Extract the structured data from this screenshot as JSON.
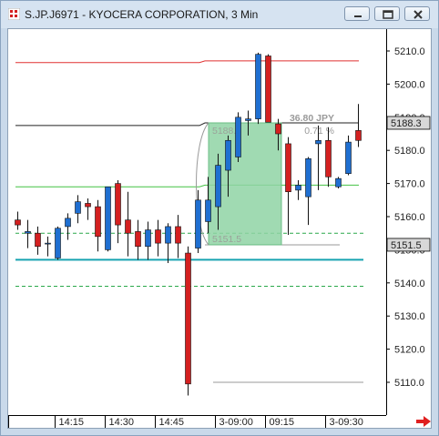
{
  "window": {
    "title": "S.JP.J6971 - KYOCERA CORPORATION, 3 Min",
    "buttons": [
      "minimize",
      "restore",
      "close"
    ]
  },
  "colors": {
    "up": "#1f6fd1",
    "down": "#d42020",
    "red_line": "#e03030",
    "black_line": "#222222",
    "green_line": "#44c244",
    "dashed_green": "#2aa84a",
    "cyan_line": "#17a3b0",
    "gray_line": "#999999",
    "measure_fill": "#8fd4a4",
    "price_box_bg": "#d8d8d8"
  },
  "chart_data": {
    "type": "candlestick",
    "title": "S.JP.J6971 - KYOCERA CORPORATION, 3 Min",
    "y_axis": {
      "ticks": [
        "5210.0",
        "5200.0",
        "5190.0",
        "5180.0",
        "5170.0",
        "5160.0",
        "5150.0",
        "5140.0",
        "5130.0",
        "5120.0",
        "5110.0"
      ],
      "tick_values": [
        5210,
        5200,
        5190,
        5180,
        5170,
        5160,
        5150,
        5140,
        5130,
        5120,
        5110
      ],
      "ylim": [
        5101,
        5215
      ]
    },
    "x_axis": {
      "labels": [
        "14:15",
        "14:30",
        "14:45",
        "3-09:00",
        "09:15",
        "3-09:30"
      ],
      "label_bar_index": [
        3,
        8,
        13,
        19,
        24,
        30
      ]
    },
    "candles": [
      {
        "o": 5159.0,
        "h": 5161.5,
        "l": 5156.0,
        "c": 5157.5
      },
      {
        "o": 5155.0,
        "h": 5159.0,
        "l": 5150.5,
        "c": 5155.5
      },
      {
        "o": 5155.0,
        "h": 5157.0,
        "l": 5148.5,
        "c": 5151.0
      },
      {
        "o": 5152.0,
        "h": 5154.0,
        "l": 5148.0,
        "c": 5152.0
      },
      {
        "o": 5147.5,
        "h": 5157.0,
        "l": 5147.0,
        "c": 5156.5
      },
      {
        "o": 5157.0,
        "h": 5161.0,
        "l": 5153.0,
        "c": 5159.5
      },
      {
        "o": 5161.0,
        "h": 5166.5,
        "l": 5158.0,
        "c": 5164.5
      },
      {
        "o": 5164.0,
        "h": 5165.5,
        "l": 5159.0,
        "c": 5163.0
      },
      {
        "o": 5163.0,
        "h": 5165.0,
        "l": 5149.5,
        "c": 5154.0
      },
      {
        "o": 5150.0,
        "h": 5169.0,
        "l": 5149.5,
        "c": 5169.0
      },
      {
        "o": 5170.0,
        "h": 5171.0,
        "l": 5152.0,
        "c": 5157.5
      },
      {
        "o": 5159.0,
        "h": 5167.5,
        "l": 5148.0,
        "c": 5155.0
      },
      {
        "o": 5155.5,
        "h": 5159.0,
        "l": 5147.0,
        "c": 5151.0
      },
      {
        "o": 5151.0,
        "h": 5158.5,
        "l": 5147.0,
        "c": 5156.0
      },
      {
        "o": 5156.0,
        "h": 5159.0,
        "l": 5148.0,
        "c": 5152.0
      },
      {
        "o": 5152.0,
        "h": 5158.0,
        "l": 5146.0,
        "c": 5157.0
      },
      {
        "o": 5157.0,
        "h": 5160.5,
        "l": 5147.5,
        "c": 5152.0
      },
      {
        "o": 5149.0,
        "h": 5151.0,
        "l": 5106.0,
        "c": 5109.5
      },
      {
        "o": 5150.5,
        "h": 5168.0,
        "l": 5149.0,
        "c": 5165.0
      },
      {
        "o": 5158.5,
        "h": 5172.0,
        "l": 5155.0,
        "c": 5165.0
      },
      {
        "o": 5163.0,
        "h": 5179.0,
        "l": 5156.0,
        "c": 5175.5
      },
      {
        "o": 5174.0,
        "h": 5184.5,
        "l": 5166.0,
        "c": 5183.0
      },
      {
        "o": 5178.0,
        "h": 5191.5,
        "l": 5176.5,
        "c": 5190.0
      },
      {
        "o": 5189.0,
        "h": 5192.0,
        "l": 5184.5,
        "c": 5189.5
      },
      {
        "o": 5189.5,
        "h": 5209.5,
        "l": 5188.0,
        "c": 5209.0
      },
      {
        "o": 5208.5,
        "h": 5209.0,
        "l": 5189.0,
        "c": 5188.5
      },
      {
        "o": 5188.0,
        "h": 5189.5,
        "l": 5180.0,
        "c": 5185.0
      },
      {
        "o": 5182.0,
        "h": 5184.0,
        "l": 5154.5,
        "c": 5167.5
      },
      {
        "o": 5168.0,
        "h": 5171.0,
        "l": 5165.0,
        "c": 5169.5
      },
      {
        "o": 5166.0,
        "h": 5178.0,
        "l": 5157.5,
        "c": 5177.5
      },
      {
        "o": 5182.0,
        "h": 5187.5,
        "l": 5168.0,
        "c": 5183.0
      },
      {
        "o": 5183.0,
        "h": 5187.0,
        "l": 5169.0,
        "c": 5172.0
      },
      {
        "o": 5169.0,
        "h": 5172.0,
        "l": 5168.5,
        "c": 5171.5
      },
      {
        "o": 5173.0,
        "h": 5184.5,
        "l": 5172.5,
        "c": 5182.5
      },
      {
        "o": 5186.0,
        "h": 5194.0,
        "l": 5181.0,
        "c": 5183.0
      }
    ],
    "lines": [
      {
        "name": "red-line",
        "style": "solid",
        "value_before": 5206.5,
        "value_after": 5207.0
      },
      {
        "name": "black-line",
        "style": "solid",
        "value_before": 5187.5,
        "value_after": 5188.3
      },
      {
        "name": "green-line",
        "style": "solid",
        "value_before": 5169.0,
        "value_after": 5169.5
      },
      {
        "name": "dashed-green-upper",
        "style": "dashed",
        "value": 5155.0
      },
      {
        "name": "cyan-line",
        "style": "solid",
        "value": 5147.0
      },
      {
        "name": "dashed-green-lower",
        "style": "dashed",
        "value": 5139.0
      },
      {
        "name": "gray-line-low",
        "style": "solid",
        "value": 5110.0
      },
      {
        "name": "gray-line-mid",
        "style": "solid",
        "value": 5151.5
      }
    ],
    "measure_tool": {
      "from_price": "5188.3",
      "to_price": "5151.5",
      "change_text": "36.80 JPY",
      "percent_text": "0.71 %",
      "from_value": 5188.3,
      "to_value": 5151.5
    },
    "price_boxes": [
      "5188.3",
      "5151.5"
    ],
    "price_box_values": [
      5188.3,
      5151.5
    ]
  }
}
